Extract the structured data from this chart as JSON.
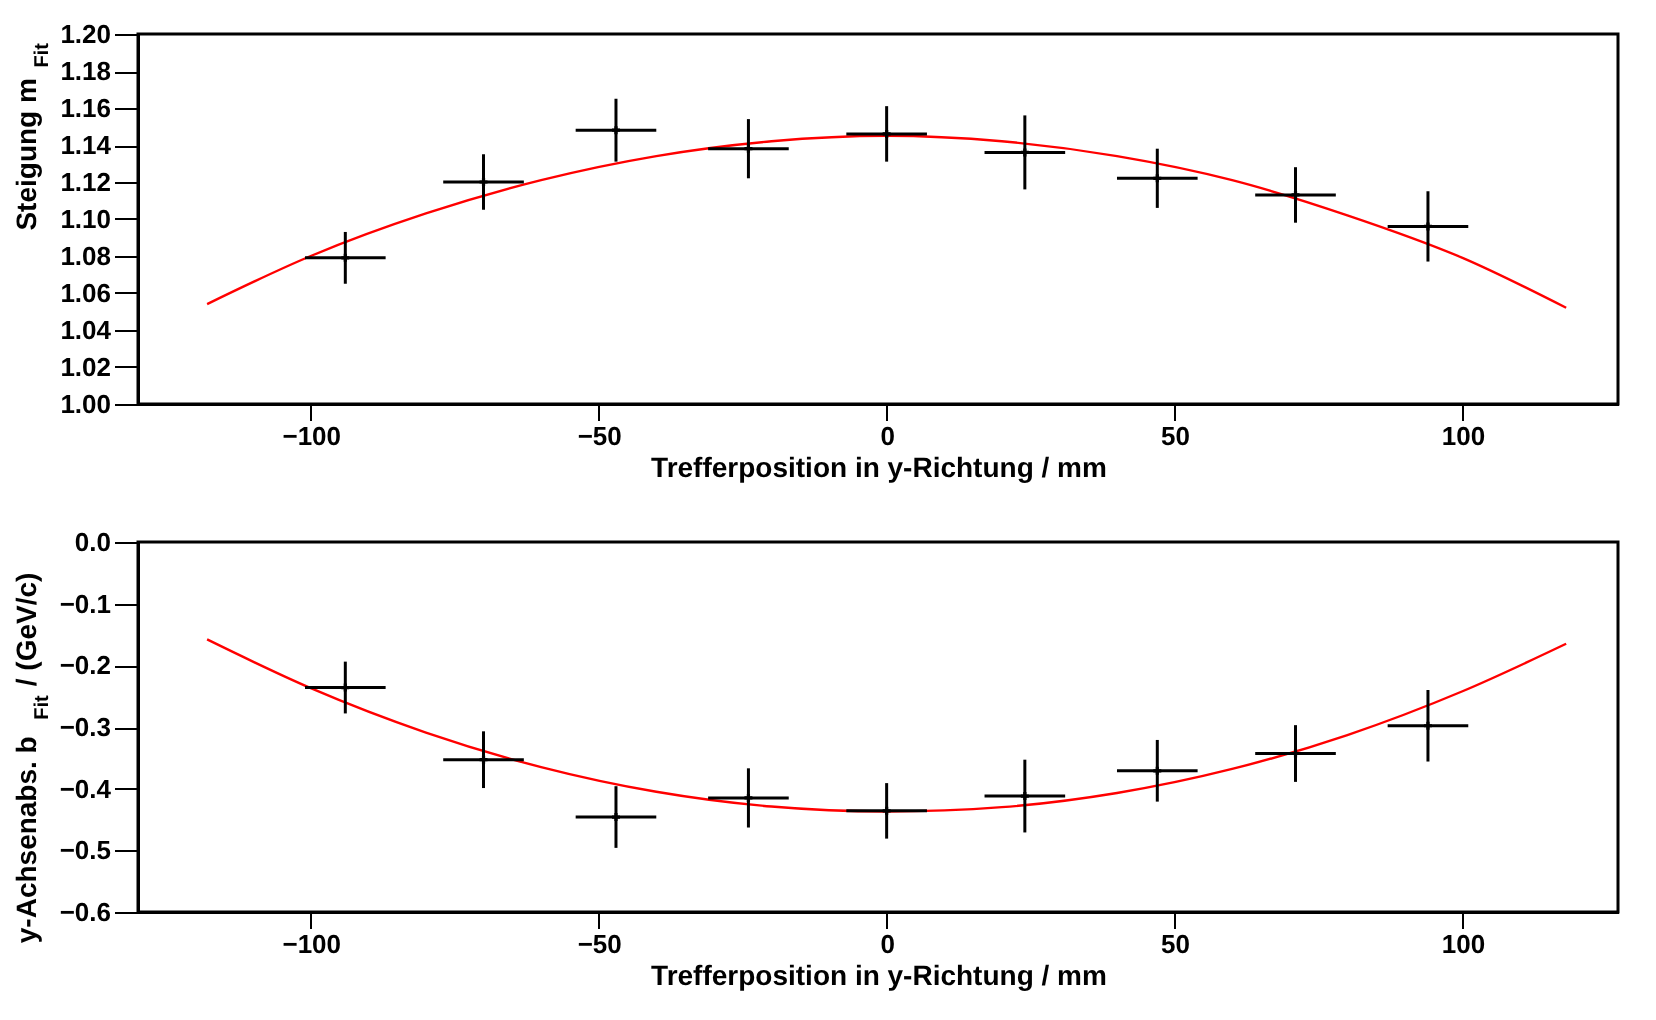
{
  "chart_data": [
    {
      "type": "scatter",
      "xlabel": "Trefferposition in y-Richtung / mm",
      "ylabel": "Steigung m$_{Fit}$",
      "xlim": [
        -130,
        127
      ],
      "xticks": [
        -100,
        -50,
        0,
        50,
        100
      ],
      "ylim": [
        1.0,
        1.2
      ],
      "yticks": [
        {
          "value": 1.0,
          "label": "1.00"
        },
        1.02,
        1.04,
        1.06,
        1.08,
        {
          "value": 1.1,
          "label": "1.10"
        },
        1.12,
        1.14,
        1.16,
        1.18,
        {
          "value": 1.2,
          "label": "1.20"
        }
      ],
      "grid": false,
      "series": [
        {
          "color": "#000000",
          "marker": "cross",
          "x": [
            -94,
            -70,
            -47,
            -24,
            0,
            24,
            47,
            71,
            94
          ],
          "values": [
            1.079,
            1.12,
            1.148,
            1.138,
            1.146,
            1.136,
            1.122,
            1.113,
            1.096
          ],
          "errors": [
            0.014,
            0.015,
            0.017,
            0.016,
            0.015,
            0.02,
            0.016,
            0.015,
            0.019
          ],
          "xerrors": [
            7,
            7,
            7,
            7,
            7,
            7,
            7,
            7,
            7
          ]
        },
        {
          "type": "line",
          "color": "#ff0000",
          "line_style": "solid",
          "x": [
            -118,
            -100,
            -80,
            -60,
            -40,
            -20,
            0,
            20,
            40,
            60,
            80,
            100,
            118
          ],
          "values": [
            1.054,
            1.08,
            1.103,
            1.121,
            1.134,
            1.142,
            1.145,
            1.142,
            1.134,
            1.121,
            1.102,
            1.079,
            1.052
          ]
        }
      ]
    },
    {
      "type": "scatter",
      "xlabel": "Trefferposition in y-Richtung / mm",
      "ylabel": "y-Achsenabs. b$_{Fit}$ / (GeV/c)",
      "xlim": [
        -130,
        127
      ],
      "xticks": [
        -100,
        -50,
        0,
        50,
        100
      ],
      "ylim": [
        -0.6,
        0.0
      ],
      "yticks": [
        -0.6,
        -0.5,
        -0.4,
        -0.3,
        -0.2,
        -0.1,
        {
          "value": 0.0,
          "label": "0.0"
        }
      ],
      "grid": false,
      "series": [
        {
          "color": "#000000",
          "marker": "cross",
          "x": [
            -94,
            -70,
            -47,
            -24,
            0,
            24,
            47,
            71,
            94
          ],
          "values": [
            -0.236,
            -0.353,
            -0.446,
            -0.415,
            -0.436,
            -0.412,
            -0.371,
            -0.343,
            -0.298
          ],
          "errors": [
            0.042,
            0.046,
            0.05,
            0.048,
            0.045,
            0.059,
            0.05,
            0.046,
            0.058
          ],
          "xerrors": [
            7,
            7,
            7,
            7,
            7,
            7,
            7,
            7,
            7
          ]
        },
        {
          "type": "line",
          "color": "#ff0000",
          "line_style": "solid",
          "x": [
            -118,
            -100,
            -80,
            -60,
            -40,
            -20,
            0,
            20,
            40,
            60,
            80,
            100,
            118
          ],
          "values": [
            -0.158,
            -0.237,
            -0.309,
            -0.365,
            -0.405,
            -0.429,
            -0.437,
            -0.43,
            -0.407,
            -0.368,
            -0.313,
            -0.242,
            -0.165
          ]
        }
      ]
    }
  ]
}
